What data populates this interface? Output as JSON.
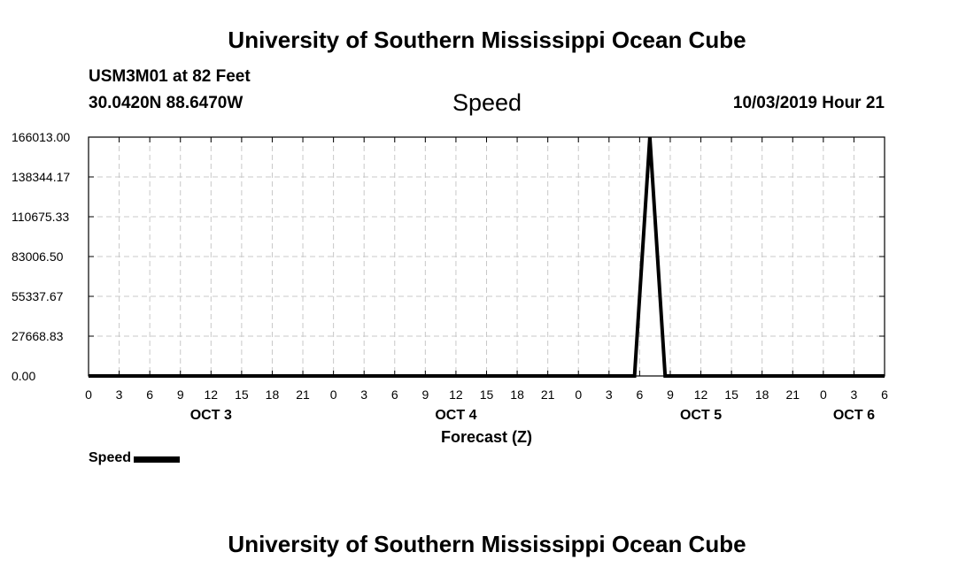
{
  "header": {
    "title": "University of Southern Mississippi Ocean Cube",
    "station": "USM3M01 at 82 Feet",
    "coords": "30.0420N 88.6470W",
    "variable": "Speed",
    "timestamp": "10/03/2019 Hour 21"
  },
  "footer": {
    "title": "University of Southern Mississippi Ocean Cube"
  },
  "chart_data": {
    "type": "line",
    "title": "Speed",
    "xlabel": "Forecast (Z)",
    "ylabel": "",
    "x_tick_labels": [
      "0",
      "3",
      "6",
      "9",
      "12",
      "15",
      "18",
      "21",
      "0",
      "3",
      "6",
      "9",
      "12",
      "15",
      "18",
      "21",
      "0",
      "3",
      "6",
      "9",
      "12",
      "15",
      "18",
      "21",
      "0",
      "3",
      "6"
    ],
    "x_day_labels": [
      {
        "label": "OCT 3",
        "hour": 12
      },
      {
        "label": "OCT 4",
        "hour": 36
      },
      {
        "label": "OCT 5",
        "hour": 60
      },
      {
        "label": "OCT 6",
        "hour": 75
      }
    ],
    "xlim": [
      0,
      78
    ],
    "ylim": [
      0,
      166013.0
    ],
    "y_ticks": [
      "0.00",
      "27668.83",
      "55337.67",
      "83006.50",
      "110675.33",
      "138344.17",
      "166013.00"
    ],
    "grid": true,
    "legend_position": "bottom-left",
    "series": [
      {
        "name": "Speed",
        "color": "#000000",
        "x": [
          0,
          53.5,
          55,
          56.5,
          78
        ],
        "y": [
          0,
          0,
          166013.0,
          0,
          0
        ]
      }
    ]
  }
}
